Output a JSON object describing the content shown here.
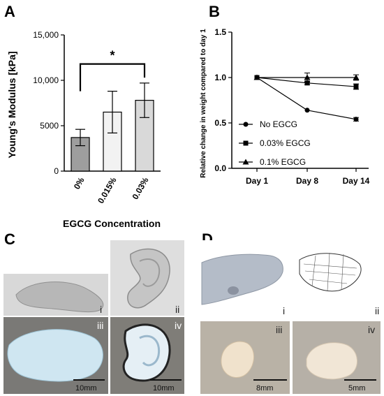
{
  "panels": {
    "A": "A",
    "B": "B",
    "C": "C",
    "D": "D"
  },
  "chart_data": [
    {
      "type": "bar",
      "categories": [
        "0%",
        "0.015%",
        "0.03%"
      ],
      "values": [
        3700,
        6500,
        7800
      ],
      "errors": [
        900,
        2300,
        1900
      ],
      "ylabel": "Young's Modulus [kPa]",
      "xlabel": "EGCG Concentration",
      "ylim": [
        0,
        15000
      ],
      "yticks": [
        "0",
        "5000",
        "10,000",
        "15,000"
      ],
      "annotation": "*",
      "colors": [
        "#9e9e9e",
        "#f2f2f2",
        "#d9d9d9"
      ]
    },
    {
      "type": "line",
      "categories": [
        "Day 1",
        "Day 8",
        "Day 14"
      ],
      "series": [
        {
          "name": "No EGCG",
          "marker": "circle",
          "values": [
            1.0,
            0.64,
            0.54
          ],
          "errors": [
            0.0,
            0.0,
            0.02
          ]
        },
        {
          "name": "0.03% EGCG",
          "marker": "square",
          "values": [
            1.0,
            0.94,
            0.9
          ],
          "errors": [
            0.0,
            0.02,
            0.03
          ]
        },
        {
          "name": "0.1% EGCG",
          "marker": "triangle",
          "values": [
            1.0,
            1.0,
            1.0
          ],
          "errors": [
            0.0,
            0.05,
            0.03
          ]
        }
      ],
      "ylabel": "Relative change in weight compared to day 1",
      "ylim": [
        0.0,
        1.5
      ],
      "yticks": [
        "0.0",
        "0.5",
        "1.0",
        "1.5"
      ],
      "legend": "bottom-left"
    }
  ],
  "figure_C": {
    "labels": [
      "i",
      "ii",
      "iii",
      "iv"
    ],
    "scalebars": [
      "10mm",
      "10mm"
    ]
  },
  "figure_D": {
    "labels": [
      "i",
      "ii",
      "iii",
      "iv"
    ],
    "scalebars": [
      "8mm",
      "5mm"
    ]
  }
}
